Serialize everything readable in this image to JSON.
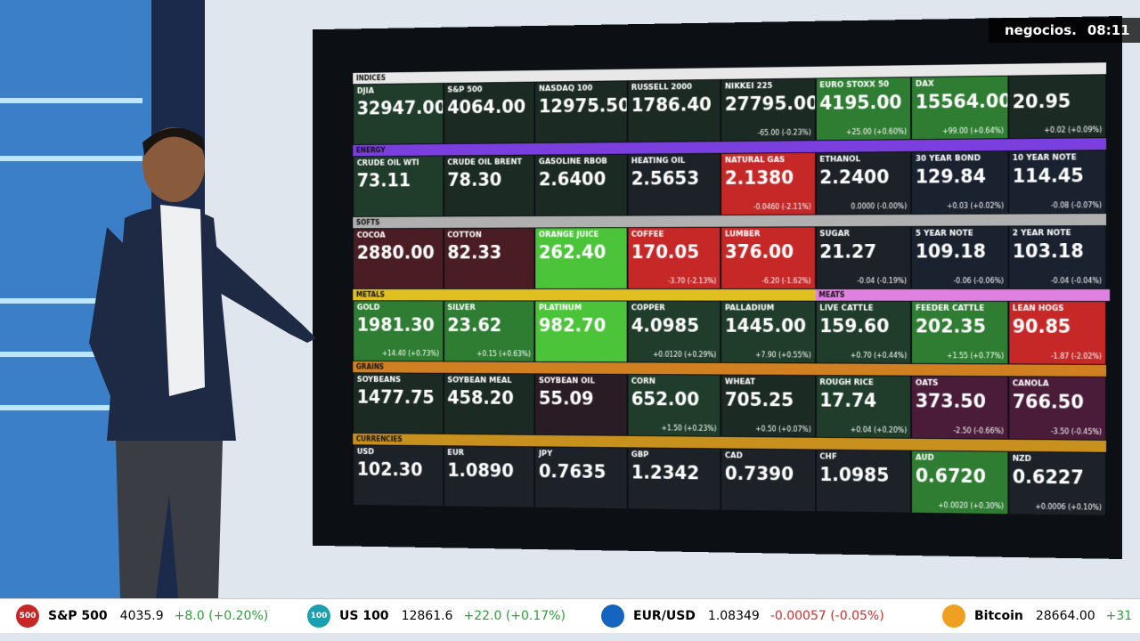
{
  "overlay": {
    "brand": "negocios.",
    "time": "08:11"
  },
  "board": {
    "sections": [
      {
        "label": "INDICES",
        "color": "#e8e8e8",
        "tiles": [
          {
            "name": "DJIA",
            "price": "32947.00",
            "color": "#1f3d2a"
          },
          {
            "name": "S&P 500",
            "price": "4064.00",
            "color": "#1c2a24"
          },
          {
            "name": "NASDAQ 100",
            "price": "12975.50",
            "color": "#1c2a24"
          },
          {
            "name": "RUSSELL 2000",
            "price": "1786.40",
            "color": "#1c2a24"
          },
          {
            "name": "NIKKEI 225",
            "price": "27795.00",
            "change": "-65.00 (-0.23%)",
            "color": "#1c2a24"
          },
          {
            "name": "EURO STOXX 50",
            "price": "4195.00",
            "change": "+25.00 (+0.60%)",
            "color": "#2e7d32"
          },
          {
            "name": "DAX",
            "price": "15564.00",
            "change": "+99.00 (+0.64%)",
            "color": "#2e7d32"
          },
          {
            "price": "20.95",
            "change": "+0.02 (+0.09%)",
            "color": "#1c2a24"
          }
        ]
      },
      {
        "label": "ENERGY",
        "color": "#7b3fe0",
        "tiles": [
          {
            "name": "CRUDE OIL WTI",
            "price": "73.11",
            "color": "#1f3d2a"
          },
          {
            "name": "CRUDE OIL BRENT",
            "price": "78.30",
            "color": "#1c2a24"
          },
          {
            "name": "GASOLINE RBOB",
            "price": "2.6400",
            "color": "#1c2a24"
          },
          {
            "name": "HEATING OIL",
            "price": "2.5653",
            "color": "#1c2228"
          },
          {
            "name": "NATURAL GAS",
            "price": "2.1380",
            "change": "-0.0460 (-2.11%)",
            "color": "#c62828"
          },
          {
            "name": "ETHANOL",
            "price": "2.2400",
            "change": "0.0000 (-0.00%)",
            "color": "#1c2228"
          },
          {
            "name": "30 YEAR BOND",
            "price": "129.84",
            "change": "+0.03 (+0.02%)",
            "color": "#1a2230"
          },
          {
            "name": "10 YEAR NOTE",
            "price": "114.45",
            "change": "-0.08 (-0.07%)",
            "color": "#1a2230"
          }
        ]
      },
      {
        "label": "SOFTS",
        "color": "#b0b0b0",
        "tiles": [
          {
            "name": "COCOA",
            "price": "2880.00",
            "color": "#4a1c24"
          },
          {
            "name": "COTTON",
            "price": "82.33",
            "color": "#4a1c24"
          },
          {
            "name": "ORANGE JUICE",
            "price": "262.40",
            "color": "#4cc43a"
          },
          {
            "name": "COFFEE",
            "price": "170.05",
            "change": "-3.70 (-2.13%)",
            "color": "#c62828"
          },
          {
            "name": "LUMBER",
            "price": "376.00",
            "change": "-6.20 (-1.62%)",
            "color": "#c62828"
          },
          {
            "name": "SUGAR",
            "price": "21.27",
            "change": "-0.04 (-0.19%)",
            "color": "#1c2228"
          },
          {
            "name": "5 YEAR NOTE",
            "price": "109.18",
            "change": "-0.06 (-0.06%)",
            "color": "#1a2230"
          },
          {
            "name": "2 YEAR NOTE",
            "price": "103.18",
            "change": "-0.04 (-0.04%)",
            "color": "#1a2230"
          }
        ]
      },
      {
        "label": "METALS",
        "color": "#e0c020",
        "tiles": [
          {
            "name": "GOLD",
            "price": "1981.30",
            "change": "+14.40 (+0.73%)",
            "color": "#2e7d32"
          },
          {
            "name": "SILVER",
            "price": "23.62",
            "change": "+0.15 (+0.63%)",
            "color": "#2e7d32"
          },
          {
            "name": "PLATINUM",
            "price": "982.70",
            "color": "#4cc43a"
          },
          {
            "name": "COPPER",
            "price": "4.0985",
            "change": "+0.0120 (+0.29%)",
            "color": "#1f3d2a"
          },
          {
            "name": "PALLADIUM",
            "price": "1445.00",
            "change": "+7.90 (+0.55%)",
            "color": "#1f3d2a"
          },
          {
            "name": "LIVE CATTLE",
            "price": "159.60",
            "change": "+0.70 (+0.44%)",
            "color": "#1f3d2a"
          },
          {
            "name": "FEEDER CATTLE",
            "price": "202.35",
            "change": "+1.55 (+0.77%)",
            "color": "#2e7d32"
          },
          {
            "name": "LEAN HOGS",
            "price": "90.85",
            "change": "-1.87 (-2.02%)",
            "color": "#c62828"
          }
        ]
      },
      {
        "label": "GRAINS",
        "color": "#d08020",
        "tiles": [
          {
            "name": "SOYBEANS",
            "price": "1477.75",
            "color": "#1c2a24"
          },
          {
            "name": "SOYBEAN MEAL",
            "price": "458.20",
            "color": "#1c2a24"
          },
          {
            "name": "SOYBEAN OIL",
            "price": "55.09",
            "color": "#2a1c24"
          },
          {
            "name": "CORN",
            "price": "652.00",
            "change": "+1.50 (+0.23%)",
            "color": "#1f3d2a"
          },
          {
            "name": "WHEAT",
            "price": "705.25",
            "change": "+0.50 (+0.07%)",
            "color": "#1c2a24"
          },
          {
            "name": "ROUGH RICE",
            "price": "17.74",
            "change": "+0.04 (+0.20%)",
            "color": "#1f3d2a"
          },
          {
            "name": "OATS",
            "price": "373.50",
            "change": "-2.50 (-0.66%)",
            "color": "#4a1c3a"
          },
          {
            "name": "CANOLA",
            "price": "766.50",
            "change": "-3.50 (-0.45%)",
            "color": "#4a1c3a"
          }
        ]
      },
      {
        "label": "CURRENCIES",
        "color": "#c8901c",
        "tiles": [
          {
            "name": "USD",
            "price": "102.30",
            "color": "#1c2228"
          },
          {
            "name": "EUR",
            "price": "1.0890",
            "color": "#1c2228"
          },
          {
            "name": "JPY",
            "price": "0.7635",
            "color": "#1c2228"
          },
          {
            "name": "GBP",
            "price": "1.2342",
            "color": "#1c2228"
          },
          {
            "name": "CAD",
            "price": "0.7390",
            "color": "#1c2228"
          },
          {
            "name": "CHF",
            "price": "1.0985",
            "color": "#1c2228"
          },
          {
            "name": "AUD",
            "price": "0.6720",
            "change": "+0.0020 (+0.30%)",
            "color": "#2e7d32"
          },
          {
            "name": "NZD",
            "price": "0.6227",
            "change": "+0.0006 (+0.10%)",
            "color": "#1c2228"
          }
        ]
      }
    ],
    "meats_label": "MEATS",
    "meats_color": "#e080e0"
  },
  "ticker": [
    {
      "badge": "500",
      "badge_color": "#c62828",
      "name": "S&P 500",
      "price": "4035.9",
      "change": "+8.0 (+0.20%)"
    },
    {
      "badge": "100",
      "badge_color": "#1aa0b0",
      "name": "US 100",
      "price": "12861.6",
      "change": "+22.0 (+0.17%)"
    },
    {
      "badge_color": "#1565c0",
      "name": "EUR/USD",
      "price": "1.08349",
      "change": "-0.00057 (-0.05%)"
    },
    {
      "badge_color": "#f0a020",
      "name": "Bitcoin",
      "price": "28664.00",
      "change": "+31"
    }
  ]
}
